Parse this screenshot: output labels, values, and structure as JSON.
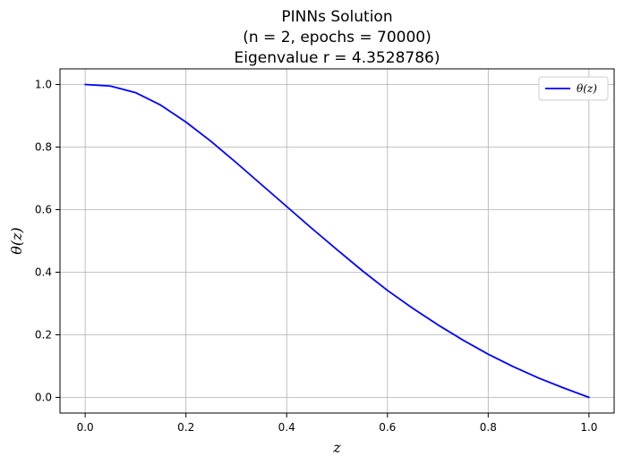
{
  "chart_data": {
    "type": "line",
    "title_lines": [
      "PINNs Solution",
      "(n = 2, epochs = 70000)",
      "Eigenvalue r = 4.3528786)"
    ],
    "xlabel": "z",
    "ylabel": "θ(z)",
    "xlim": [
      -0.05,
      1.05
    ],
    "ylim": [
      -0.05,
      1.05
    ],
    "x_ticks": [
      "0.0",
      "0.2",
      "0.4",
      "0.6",
      "0.8",
      "1.0"
    ],
    "y_ticks": [
      "0.0",
      "0.2",
      "0.4",
      "0.6",
      "0.8",
      "1.0"
    ],
    "grid": true,
    "legend": "top-right",
    "series": [
      {
        "name": "θ(z)",
        "color": "#0000ff",
        "x": [
          0.0,
          0.05,
          0.1,
          0.15,
          0.2,
          0.25,
          0.3,
          0.35,
          0.4,
          0.45,
          0.5,
          0.55,
          0.6,
          0.65,
          0.7,
          0.75,
          0.8,
          0.85,
          0.9,
          0.95,
          1.0
        ],
        "y": [
          1.0,
          0.995,
          0.974,
          0.934,
          0.88,
          0.818,
          0.75,
          0.68,
          0.61,
          0.54,
          0.472,
          0.405,
          0.342,
          0.285,
          0.232,
          0.183,
          0.138,
          0.098,
          0.062,
          0.03,
          0.0
        ]
      }
    ]
  }
}
